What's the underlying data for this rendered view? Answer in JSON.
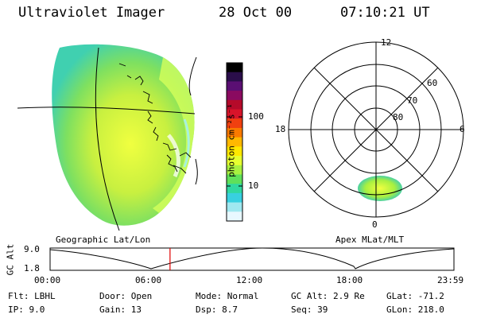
{
  "header": {
    "title": "Ultraviolet Imager",
    "date": "28 Oct 00",
    "time": "07:10:21 UT"
  },
  "colorbar": {
    "label": "photon cm⁻²s⁻¹",
    "ticks": [
      "100",
      "10"
    ],
    "colors": [
      "#000000",
      "#2a0e4a",
      "#5a0f73",
      "#8a0a60",
      "#b50a2a",
      "#d8142a",
      "#f04010",
      "#fa7a00",
      "#ffb800",
      "#ffe800",
      "#e6ff30",
      "#a8f040",
      "#5fe05a",
      "#30d8a0",
      "#38d0e0",
      "#a0e8f0",
      "#e8f8ff"
    ]
  },
  "map_labels": {
    "left": "Geographic Lat/Lon",
    "right": "Apex MLat/MLT"
  },
  "polar": {
    "mlt_labels": [
      "12",
      "18",
      "6",
      "0"
    ],
    "lat_labels": [
      "60",
      "70",
      "80"
    ]
  },
  "timeline": {
    "ylabel": "GC Alt",
    "yticks": [
      "9.0",
      "1.8"
    ],
    "xticks": [
      "00:00",
      "06:00",
      "12:00",
      "18:00",
      "23:59"
    ],
    "current_fraction": 0.297
  },
  "info": {
    "filter": "Flt: LBHL",
    "ip": "IP:  9.0",
    "door": "Door: Open",
    "gain": "Gain: 13",
    "mode": "Mode: Normal",
    "dsp": "Dsp:    8.7",
    "gc_alt": "GC Alt: 2.9 Re",
    "seq": "Seq: 39",
    "glat": "GLat: -71.2",
    "glon": "GLon: 218.0"
  }
}
